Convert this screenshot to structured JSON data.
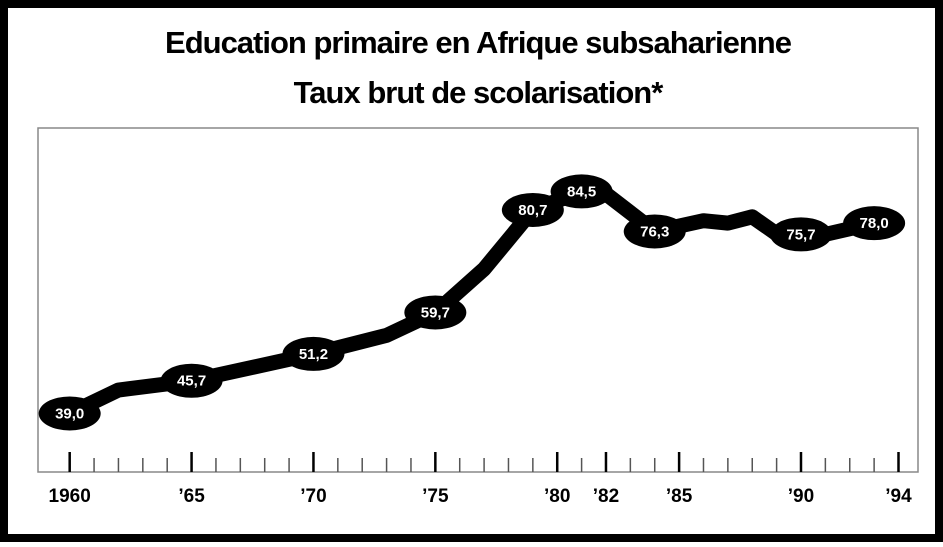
{
  "chart_data": {
    "type": "line",
    "title": "Education primaire en Afrique subsaharienne",
    "subtitle": "Taux brut de scolarisation*",
    "series": [
      {
        "name": "Taux brut de scolarisation",
        "color": "#000000",
        "x": [
          1960,
          1962,
          1965,
          1970,
          1973,
          1975,
          1977,
          1979,
          1981,
          1982,
          1984,
          1986,
          1987,
          1988,
          1989,
          1990,
          1991,
          1993
        ],
        "values": [
          39.0,
          43.8,
          45.7,
          51.2,
          55.0,
          59.7,
          68.6,
          80.7,
          84.5,
          84.0,
          76.3,
          78.5,
          78.0,
          79.3,
          75.8,
          75.7,
          75.7,
          78.0
        ],
        "value_labels": [
          "39,0",
          null,
          "45,7",
          "51,2",
          null,
          "59,7",
          null,
          "80,7",
          "84,5",
          null,
          "76,3",
          null,
          null,
          null,
          null,
          "75,7",
          null,
          "78,0"
        ]
      }
    ],
    "xlim": [
      1958.7,
      1994.8
    ],
    "ylim": [
      27,
      97.5
    ],
    "xticks": [
      1960,
      {
        "value": 1965,
        "label": "’65"
      },
      {
        "value": 1970,
        "label": "’70"
      },
      {
        "value": 1975,
        "label": "’75"
      },
      {
        "value": 1980,
        "label": "’80"
      },
      {
        "value": 1982,
        "label": "’82"
      },
      {
        "value": 1985,
        "label": "’85"
      },
      {
        "value": 1990,
        "label": "’90"
      },
      {
        "value": 1994,
        "label": "’94"
      }
    ],
    "xminor_ticks": [
      1961,
      1962,
      1963,
      1964,
      1966,
      1967,
      1968,
      1969,
      1971,
      1972,
      1973,
      1974,
      1976,
      1977,
      1978,
      1979,
      1981,
      1983,
      1984,
      1986,
      1987,
      1988,
      1989,
      1991,
      1992,
      1993
    ]
  }
}
